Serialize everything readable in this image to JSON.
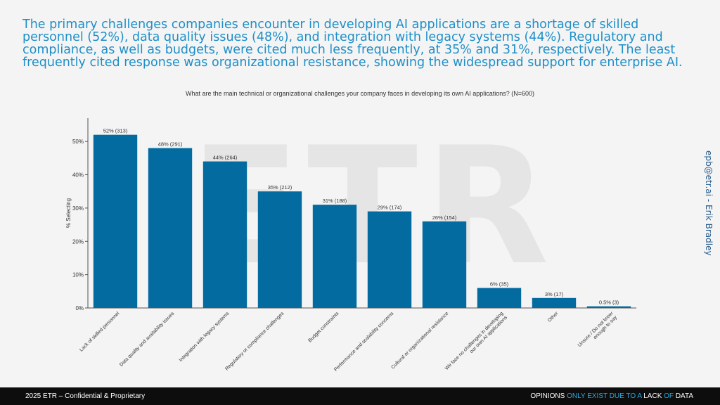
{
  "headline": "The primary challenges companies encounter in developing AI applications are a shortage of skilled personnel (52%), data quality issues (48%), and integration with legacy systems (44%). Regulatory and compliance, as well as budgets, were cited much less frequently, at 35% and 31%, respectively. The least frequently cited response was organizational resistance, showing the widespread support for enterprise AI.",
  "side_credit": "epb@etr.ai - Erik Bradley",
  "watermark_text": "ETR",
  "footer": {
    "left": "2025 ETR – Confidential & Proprietary",
    "tagline": [
      {
        "text": "OPINIONS ",
        "highlight": false
      },
      {
        "text": "ONLY EXIST DUE TO A ",
        "highlight": true
      },
      {
        "text": "LACK ",
        "highlight": false
      },
      {
        "text": "OF ",
        "highlight": true
      },
      {
        "text": "DATA",
        "highlight": false
      }
    ]
  },
  "colors": {
    "bar": "#046ba1",
    "headline": "#1d8fc9",
    "tagline_highlight": "#28a8e0"
  },
  "chart_data": {
    "type": "bar",
    "title": "What are the main technical or organizational challenges your company faces in developing its own AI applications? (N=600)",
    "xlabel": "",
    "ylabel": "% Selecting",
    "ylim": [
      0,
      57
    ],
    "yticks": [
      0,
      10,
      20,
      30,
      40,
      50
    ],
    "ytick_labels": [
      "0%",
      "10%",
      "20%",
      "30%",
      "40%",
      "50%"
    ],
    "grid": false,
    "categories": [
      "Lack of skilled personnel",
      "Data quality and availability issues",
      "Integration with legacy systems",
      "Regulatory or compliance challenges",
      "Budget constraints",
      "Performance and scalability concerns",
      "Cultural or organizational resistance",
      "We face no challenges in developing|our own AI applications",
      "Other",
      "Unsure / Do not know|enough to say"
    ],
    "values": [
      52,
      48,
      44,
      35,
      31,
      29,
      26,
      6,
      3,
      0.5
    ],
    "data_labels": [
      "52% (313)",
      "48% (291)",
      "44% (264)",
      "35% (212)",
      "31% (188)",
      "29% (174)",
      "26% (154)",
      "6% (35)",
      "3% (17)",
      "0.5% (3)"
    ]
  }
}
